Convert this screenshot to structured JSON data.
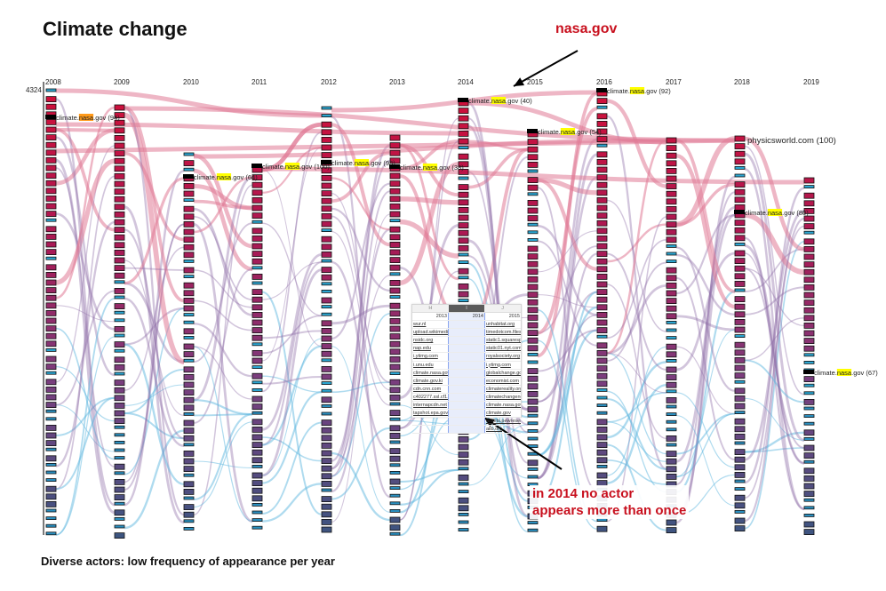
{
  "title": "Climate change",
  "caption": "Diverse actors: low frequency of appearance per year",
  "annotations": {
    "nasa_label": "nasa.gov",
    "note_line1": "in 2014 no actor",
    "note_line2": "appears more than once"
  },
  "colors": {
    "accent_red": "#c8101e",
    "highlight_yellow": "#ffff00",
    "highlight_orange": "#ff9a1a",
    "node_high": "#d0103a",
    "node_mid": "#7a3e7e",
    "node_low": "#3d5580",
    "node_cyan": "#2aa6d2",
    "flow_pink": "#e07a96",
    "flow_purple": "#8e6fa8",
    "flow_blue": "#5fb8e0"
  },
  "chart_data": {
    "type": "alluvial",
    "title": "Climate change",
    "xlabel": "",
    "ylabel": "",
    "top_value_label": "4324",
    "years": [
      "2008",
      "2009",
      "2010",
      "2011",
      "2012",
      "2013",
      "2014",
      "2015",
      "2016",
      "2017",
      "2018",
      "2019"
    ],
    "highlighted_actors": [
      {
        "year": "2008",
        "name_prefix": "climate.",
        "name_highlight": "nasa",
        "name_suffix": ".gov",
        "rank": "(94)",
        "highlight": "orange"
      },
      {
        "year": "2010",
        "name_prefix": "climate.",
        "name_highlight": "nasa",
        "name_suffix": ".gov",
        "rank": "(64)",
        "highlight": "yellow"
      },
      {
        "year": "2011",
        "name_prefix": "climate.",
        "name_highlight": "nasa",
        "name_suffix": ".gov",
        "rank": "(100)",
        "highlight": "yellow"
      },
      {
        "year": "2012",
        "name_prefix": "climate.",
        "name_highlight": "nasa",
        "name_suffix": ".gov",
        "rank": "(93)",
        "highlight": "yellow"
      },
      {
        "year": "2013",
        "name_prefix": "climate.",
        "name_highlight": "nasa",
        "name_suffix": ".gov",
        "rank": "(38)",
        "highlight": "yellow"
      },
      {
        "year": "2014",
        "name_prefix": "climate.",
        "name_highlight": "nasa",
        "name_suffix": ".gov",
        "rank": "(40)",
        "highlight": "yellow"
      },
      {
        "year": "2015",
        "name_prefix": "climate.",
        "name_highlight": "nasa",
        "name_suffix": ".gov",
        "rank": "(54)",
        "highlight": "yellow"
      },
      {
        "year": "2016",
        "name_prefix": "climate.",
        "name_highlight": "nasa",
        "name_suffix": ".gov",
        "rank": "(92)",
        "highlight": "yellow"
      },
      {
        "year": "2018",
        "name_prefix": "climate.",
        "name_highlight": "nasa",
        "name_suffix": ".gov",
        "rank": "(80)",
        "highlight": "yellow"
      },
      {
        "year": "2019",
        "name_prefix": "climate.",
        "name_highlight": "nasa",
        "name_suffix": ".gov",
        "rank": "(67)",
        "highlight": "yellow"
      }
    ],
    "other_labels": [
      {
        "year": "2018",
        "name": "physicsworld.com",
        "rank": "(100)"
      }
    ]
  },
  "spreadsheet": {
    "columns": [
      "H",
      "I",
      "J"
    ],
    "selected_column": "I",
    "years": [
      "2013",
      "2014",
      "2015"
    ],
    "col_2013": [
      "wur.nl",
      "upload.wikimedia.org",
      "nsidc.org",
      "nap.edu",
      "i.ytimg.com",
      "i.unu.edu",
      "climate.nasa.gov",
      "climate.gov.ki",
      "cdn.cnn.com",
      "c402277.ssl.cf1.rackcdn.com",
      "internapcdn.net",
      "tapshot.epa.gov"
    ],
    "col_2014": [],
    "col_2015": [
      "unhabitat.org",
      "timedotcom.files.",
      "static1.squaresp",
      "static01.nyt.com",
      "royalsociety.org",
      "i.ytimg.com",
      "globalchange.gov",
      "economist.com",
      "climatereality.org",
      "climatechangene",
      "climate.nasa.gov",
      "climate.gov",
      "assets.pewresea",
      "aiib.org"
    ]
  }
}
